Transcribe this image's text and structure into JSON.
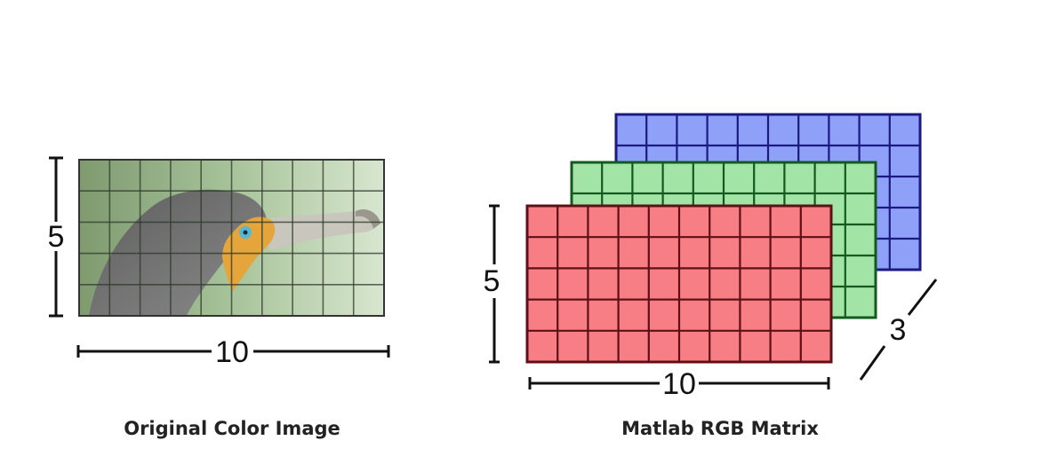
{
  "left_figure": {
    "caption": "Original Color Image",
    "rows_label": "5",
    "cols_label": "10",
    "rows": 5,
    "cols": 10
  },
  "right_figure": {
    "caption": "Matlab RGB Matrix",
    "rows_label": "5",
    "cols_label": "10",
    "depth_label": "3",
    "rows": 5,
    "cols": 10,
    "layers": [
      {
        "name": "blue-layer",
        "fill": "#8fa0f8",
        "grid": "#1a1a80"
      },
      {
        "name": "green-layer",
        "fill": "#a2e3a6",
        "grid": "#135a1e"
      },
      {
        "name": "red-layer",
        "fill": "#f77e84",
        "grid": "#5e1015"
      }
    ]
  },
  "colors": {
    "photo_background": "#9fbf93",
    "bird_body": "#6c6c6c",
    "bird_beak": "#c9c6bd",
    "bird_throat": "#e6a53b",
    "bird_eye": "#53b8d6"
  }
}
